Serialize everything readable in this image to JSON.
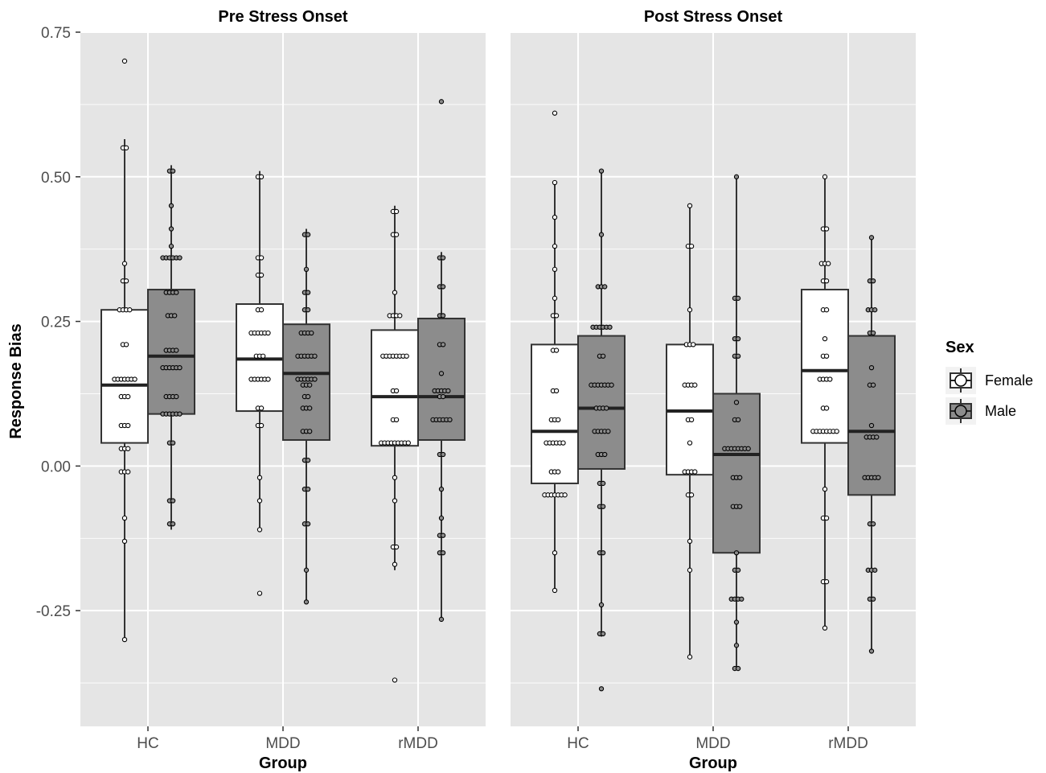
{
  "chart_data": {
    "type": "box",
    "ylabel": "Response Bias",
    "xlabel": "Group",
    "ylim": [
      -0.45,
      0.75
    ],
    "yticks": [
      -0.25,
      0.0,
      0.25,
      0.5,
      0.75
    ],
    "ytick_labels": [
      "-0.25",
      "0.00",
      "0.25",
      "0.50",
      "0.75"
    ],
    "categories": [
      "HC",
      "MDD",
      "rMDD"
    ],
    "legend": {
      "title": "Sex",
      "position": "right",
      "entries": [
        {
          "name": "Female",
          "fill": "#ffffff"
        },
        {
          "name": "Male",
          "fill": "#8c8c8c"
        }
      ]
    },
    "colors": {
      "panel_bg": "#e5e5e5",
      "grid": "#ffffff",
      "female": "#ffffff",
      "male": "#8c8c8c",
      "box_line": "#333333"
    },
    "grid": true,
    "panels": [
      {
        "title": "Pre Stress Onset",
        "groups": [
          {
            "category": "HC",
            "female": {
              "q1": 0.04,
              "median": 0.14,
              "q3": 0.27,
              "whisker_low": -0.3,
              "whisker_high": 0.565,
              "points": [
                0.7,
                0.55,
                0.55,
                0.35,
                0.32,
                0.32,
                0.27,
                0.27,
                0.27,
                0.27,
                0.21,
                0.21,
                0.15,
                0.15,
                0.15,
                0.15,
                0.15,
                0.15,
                0.15,
                0.12,
                0.12,
                0.12,
                0.07,
                0.07,
                0.07,
                0.03,
                0.03,
                0.03,
                -0.01,
                -0.01,
                -0.01,
                -0.09,
                -0.13,
                -0.3
              ]
            },
            "male": {
              "q1": 0.09,
              "median": 0.19,
              "q3": 0.305,
              "whisker_low": -0.11,
              "whisker_high": 0.52,
              "points": [
                0.51,
                0.51,
                0.45,
                0.41,
                0.38,
                0.36,
                0.36,
                0.36,
                0.36,
                0.36,
                0.36,
                0.3,
                0.3,
                0.3,
                0.3,
                0.26,
                0.26,
                0.26,
                0.2,
                0.2,
                0.2,
                0.2,
                0.17,
                0.17,
                0.17,
                0.17,
                0.17,
                0.17,
                0.12,
                0.12,
                0.12,
                0.12,
                0.09,
                0.09,
                0.09,
                0.09,
                0.09,
                0.09,
                0.04,
                0.04,
                -0.06,
                -0.06,
                -0.1,
                -0.1
              ]
            }
          },
          {
            "category": "MDD",
            "female": {
              "q1": 0.095,
              "median": 0.185,
              "q3": 0.28,
              "whisker_low": -0.11,
              "whisker_high": 0.51,
              "points": [
                0.5,
                0.5,
                0.36,
                0.36,
                0.33,
                0.33,
                0.27,
                0.27,
                0.23,
                0.23,
                0.23,
                0.23,
                0.23,
                0.23,
                0.19,
                0.19,
                0.19,
                0.15,
                0.15,
                0.15,
                0.15,
                0.15,
                0.15,
                0.1,
                0.1,
                0.07,
                0.07,
                -0.02,
                -0.06,
                -0.11,
                -0.22
              ]
            },
            "male": {
              "q1": 0.045,
              "median": 0.16,
              "q3": 0.245,
              "whisker_low": -0.235,
              "whisker_high": 0.41,
              "points": [
                0.4,
                0.4,
                0.34,
                0.3,
                0.3,
                0.27,
                0.27,
                0.23,
                0.23,
                0.23,
                0.23,
                0.19,
                0.19,
                0.19,
                0.19,
                0.19,
                0.19,
                0.15,
                0.15,
                0.15,
                0.15,
                0.15,
                0.15,
                0.14,
                0.14,
                0.14,
                0.12,
                0.12,
                0.1,
                0.1,
                0.1,
                0.06,
                0.06,
                0.06,
                0.01,
                0.01,
                -0.04,
                -0.04,
                -0.1,
                -0.1,
                -0.18,
                -0.235
              ]
            }
          },
          {
            "category": "rMDD",
            "female": {
              "q1": 0.035,
              "median": 0.12,
              "q3": 0.235,
              "whisker_low": -0.18,
              "whisker_high": 0.45,
              "points": [
                0.44,
                0.44,
                0.4,
                0.4,
                0.3,
                0.26,
                0.26,
                0.26,
                0.26,
                0.19,
                0.19,
                0.19,
                0.19,
                0.19,
                0.19,
                0.19,
                0.19,
                0.13,
                0.13,
                0.08,
                0.08,
                0.04,
                0.04,
                0.04,
                0.04,
                0.04,
                0.04,
                0.04,
                0.04,
                0.04,
                -0.02,
                -0.06,
                -0.14,
                -0.14,
                -0.17,
                -0.37
              ]
            },
            "male": {
              "q1": 0.045,
              "median": 0.12,
              "q3": 0.255,
              "whisker_low": -0.265,
              "whisker_high": 0.37,
              "points": [
                0.63,
                0.36,
                0.36,
                0.31,
                0.31,
                0.26,
                0.26,
                0.21,
                0.21,
                0.16,
                0.13,
                0.13,
                0.13,
                0.13,
                0.13,
                0.12,
                0.12,
                0.08,
                0.08,
                0.08,
                0.08,
                0.08,
                0.08,
                0.02,
                0.02,
                -0.04,
                -0.09,
                -0.12,
                -0.12,
                -0.15,
                -0.15,
                -0.265
              ]
            }
          }
        ]
      },
      {
        "title": "Post Stress Onset",
        "groups": [
          {
            "category": "HC",
            "female": {
              "q1": -0.03,
              "median": 0.06,
              "q3": 0.21,
              "whisker_low": -0.215,
              "whisker_high": 0.49,
              "points": [
                0.61,
                0.49,
                0.43,
                0.38,
                0.34,
                0.29,
                0.26,
                0.26,
                0.2,
                0.2,
                0.13,
                0.13,
                0.08,
                0.08,
                0.08,
                0.04,
                0.04,
                0.04,
                0.04,
                0.04,
                0.04,
                -0.01,
                -0.01,
                -0.01,
                -0.05,
                -0.05,
                -0.05,
                -0.05,
                -0.05,
                -0.05,
                -0.05,
                -0.15,
                -0.215
              ]
            },
            "male": {
              "q1": -0.005,
              "median": 0.1,
              "q3": 0.225,
              "whisker_low": -0.295,
              "whisker_high": 0.51,
              "points": [
                0.51,
                0.4,
                0.31,
                0.31,
                0.31,
                0.24,
                0.24,
                0.24,
                0.24,
                0.24,
                0.24,
                0.19,
                0.19,
                0.14,
                0.14,
                0.14,
                0.14,
                0.14,
                0.14,
                0.14,
                0.1,
                0.1,
                0.1,
                0.1,
                0.06,
                0.06,
                0.06,
                0.06,
                0.06,
                0.02,
                0.02,
                0.02,
                -0.03,
                -0.03,
                -0.07,
                -0.07,
                -0.15,
                -0.15,
                -0.24,
                -0.29,
                -0.29,
                -0.385
              ]
            }
          },
          {
            "category": "MDD",
            "female": {
              "q1": -0.015,
              "median": 0.095,
              "q3": 0.21,
              "whisker_low": -0.33,
              "whisker_high": 0.45,
              "points": [
                0.45,
                0.38,
                0.38,
                0.27,
                0.21,
                0.21,
                0.21,
                0.14,
                0.14,
                0.14,
                0.14,
                0.08,
                0.08,
                0.04,
                -0.01,
                -0.01,
                -0.01,
                -0.01,
                -0.05,
                -0.05,
                -0.13,
                -0.18,
                -0.33
              ]
            },
            "male": {
              "q1": -0.15,
              "median": 0.02,
              "q3": 0.125,
              "whisker_low": -0.35,
              "whisker_high": 0.5,
              "points": [
                0.5,
                0.29,
                0.29,
                0.22,
                0.22,
                0.19,
                0.19,
                0.11,
                0.08,
                0.08,
                0.03,
                0.03,
                0.03,
                0.03,
                0.03,
                0.03,
                0.03,
                0.03,
                -0.02,
                -0.02,
                -0.02,
                -0.07,
                -0.07,
                -0.07,
                -0.15,
                -0.18,
                -0.18,
                -0.23,
                -0.23,
                -0.23,
                -0.23,
                -0.27,
                -0.31,
                -0.35,
                -0.35
              ]
            }
          },
          {
            "category": "rMDD",
            "female": {
              "q1": 0.04,
              "median": 0.165,
              "q3": 0.305,
              "whisker_low": -0.28,
              "whisker_high": 0.5,
              "points": [
                0.5,
                0.41,
                0.41,
                0.35,
                0.35,
                0.35,
                0.32,
                0.32,
                0.27,
                0.27,
                0.22,
                0.19,
                0.19,
                0.15,
                0.15,
                0.15,
                0.15,
                0.1,
                0.1,
                0.06,
                0.06,
                0.06,
                0.06,
                0.06,
                0.06,
                0.06,
                0.06,
                -0.04,
                -0.09,
                -0.09,
                -0.2,
                -0.2,
                -0.28
              ]
            },
            "male": {
              "q1": -0.05,
              "median": 0.06,
              "q3": 0.225,
              "whisker_low": -0.32,
              "whisker_high": 0.395,
              "points": [
                0.395,
                0.32,
                0.32,
                0.27,
                0.27,
                0.27,
                0.23,
                0.23,
                0.17,
                0.14,
                0.14,
                0.07,
                0.05,
                0.05,
                0.05,
                0.05,
                -0.02,
                -0.02,
                -0.02,
                -0.02,
                -0.02,
                -0.1,
                -0.1,
                -0.18,
                -0.18,
                -0.18,
                -0.23,
                -0.23,
                -0.32
              ]
            }
          }
        ]
      }
    ]
  }
}
